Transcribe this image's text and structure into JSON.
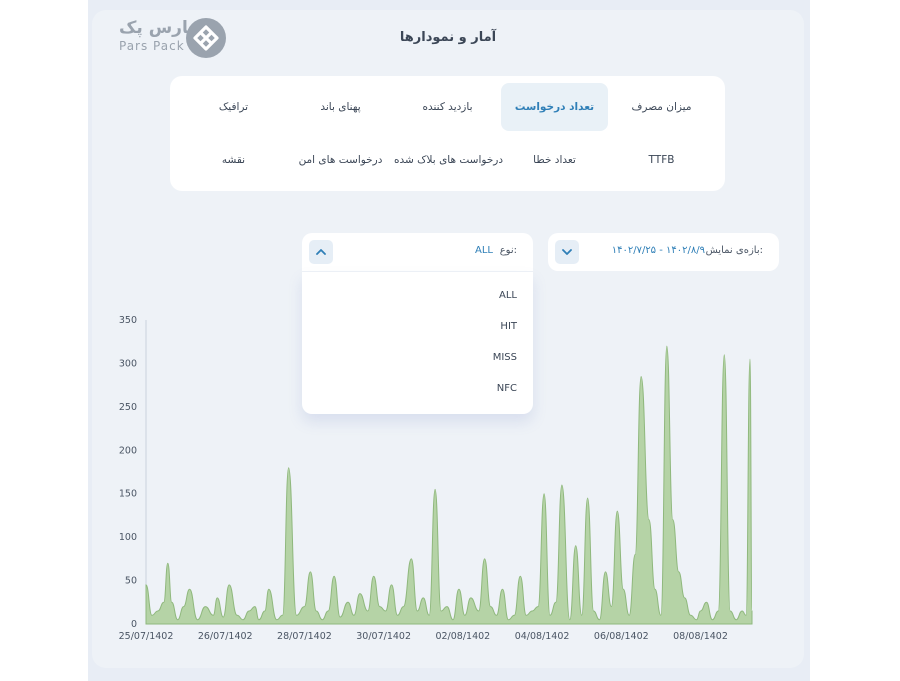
{
  "brand": {
    "name_fa": "پارس پک",
    "name_en": "Pars Pack"
  },
  "page": {
    "title": "آمار و نمودارها"
  },
  "tabs": [
    {
      "label": "میزان مصرف"
    },
    {
      "label": "تعداد درخواست"
    },
    {
      "label": "بازدید کننده"
    },
    {
      "label": "پهنای باند"
    },
    {
      "label": "ترافیک"
    },
    {
      "label": "TTFB"
    },
    {
      "label": "تعداد خطا"
    },
    {
      "label": "درخواست های بلاک شده"
    },
    {
      "label": "درخواست های امن"
    },
    {
      "label": "نقشه"
    }
  ],
  "active_tab": "تعداد درخواست",
  "filters": {
    "range": {
      "label": "بازه‌ی نمایش:",
      "value": "۱۴۰۲/۷/۲۵ - ۱۴۰۲/۸/۹"
    },
    "type": {
      "label": "نوع:",
      "value": "ALL",
      "options": [
        "ALL",
        "HIT",
        "MISS",
        "NFC"
      ]
    }
  },
  "colors": {
    "accent": "#2f7fb7",
    "area_fill": "#b5d3a6",
    "area_stroke": "#8fb87d",
    "panel": "#eef2f7"
  },
  "chart_data": {
    "type": "area",
    "ylim": [
      0,
      350
    ],
    "yticks": [
      0,
      50,
      100,
      150,
      200,
      250,
      300,
      350
    ],
    "xlim": [
      0,
      15.3
    ],
    "xticks": [
      {
        "x": 0,
        "label": "25/07/1402"
      },
      {
        "x": 2,
        "label": "26/07/1402"
      },
      {
        "x": 4,
        "label": "28/07/1402"
      },
      {
        "x": 6,
        "label": "30/07/1402"
      },
      {
        "x": 8,
        "label": "02/08/1402"
      },
      {
        "x": 10,
        "label": "04/08/1402"
      },
      {
        "x": 12,
        "label": "06/08/1402"
      },
      {
        "x": 14,
        "label": "08/08/1402"
      }
    ],
    "series": [
      {
        "x": [
          0,
          0.15,
          0.3,
          0.45,
          0.55,
          0.65,
          0.8,
          0.95,
          1.1,
          1.3,
          1.5,
          1.7,
          1.8,
          1.95,
          2.1,
          2.3,
          2.45,
          2.6,
          2.75,
          2.85,
          3.0,
          3.1,
          3.3,
          3.45,
          3.6,
          3.8,
          4.0,
          4.15,
          4.3,
          4.45,
          4.6,
          4.75,
          4.9,
          5.1,
          5.25,
          5.4,
          5.6,
          5.75,
          5.9,
          6.05,
          6.2,
          6.35,
          6.5,
          6.7,
          6.85,
          7.0,
          7.15,
          7.3,
          7.45,
          7.6,
          7.75,
          7.9,
          8.05,
          8.2,
          8.4,
          8.55,
          8.7,
          8.85,
          9.0,
          9.15,
          9.3,
          9.45,
          9.6,
          9.75,
          9.9,
          10.05,
          10.2,
          10.35,
          10.5,
          10.7,
          10.85,
          11.0,
          11.15,
          11.3,
          11.45,
          11.6,
          11.75,
          11.9,
          12.05,
          12.2,
          12.35,
          12.5,
          12.7,
          12.85,
          13.0,
          13.15,
          13.3,
          13.45,
          13.6,
          13.75,
          13.9,
          14.0,
          14.15,
          14.3,
          14.45,
          14.6,
          14.75,
          14.9,
          15.05,
          15.15,
          15.25,
          15.3
        ],
        "y": [
          45,
          10,
          15,
          25,
          70,
          25,
          5,
          20,
          40,
          5,
          20,
          10,
          30,
          8,
          45,
          10,
          5,
          15,
          20,
          5,
          15,
          40,
          5,
          10,
          180,
          10,
          20,
          60,
          15,
          5,
          15,
          55,
          8,
          25,
          10,
          35,
          15,
          55,
          20,
          15,
          45,
          10,
          20,
          75,
          15,
          30,
          10,
          155,
          15,
          20,
          5,
          40,
          10,
          30,
          15,
          75,
          20,
          10,
          40,
          5,
          10,
          55,
          10,
          15,
          20,
          150,
          10,
          25,
          160,
          5,
          90,
          10,
          145,
          15,
          5,
          60,
          20,
          130,
          40,
          10,
          80,
          285,
          120,
          40,
          10,
          320,
          120,
          60,
          30,
          10,
          5,
          15,
          25,
          5,
          15,
          310,
          15,
          5,
          15,
          10,
          305,
          15
        ]
      }
    ]
  }
}
